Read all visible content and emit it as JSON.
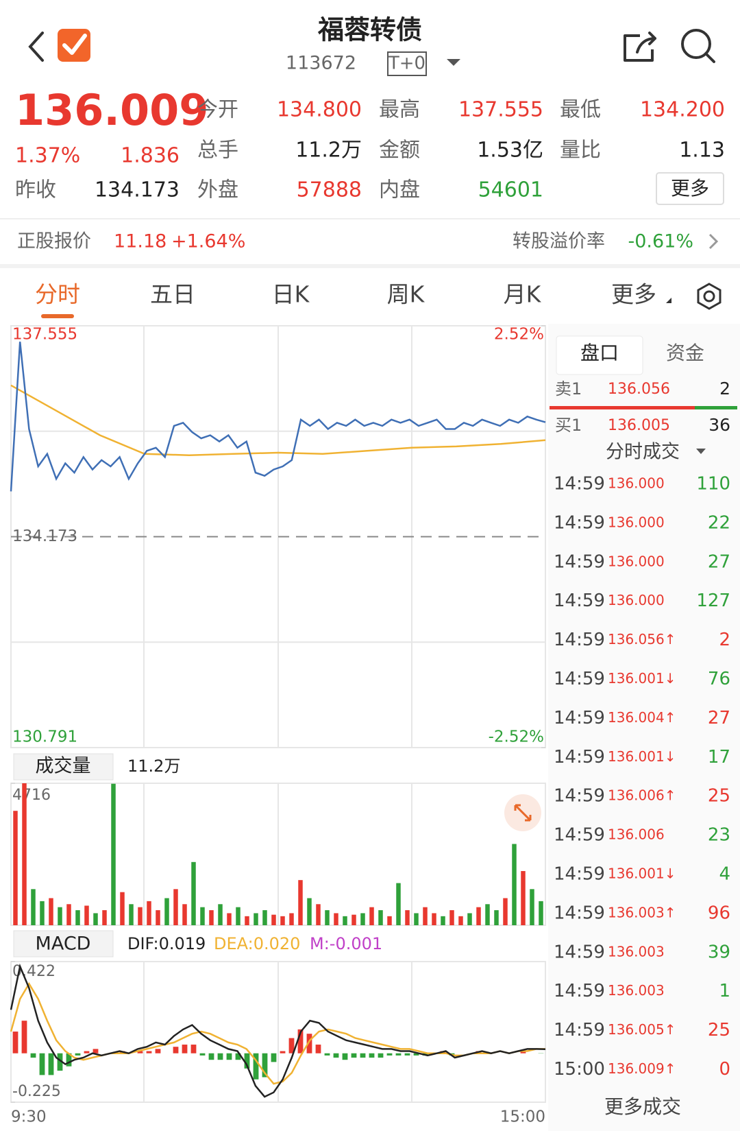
{
  "header": {
    "title": "福蓉转债",
    "code": "113672",
    "tag": "T+0"
  },
  "quote": {
    "price": "136.009",
    "change_pct": "1.37%",
    "change": "1.836",
    "prev_close_label": "昨收",
    "prev_close": "134.173",
    "fields": [
      [
        {
          "label": "今开",
          "value": "134.800",
          "color": "#e8382f"
        },
        {
          "label": "最高",
          "value": "137.555",
          "color": "#e8382f"
        },
        {
          "label": "最低",
          "value": "134.200",
          "color": "#e8382f"
        }
      ],
      [
        {
          "label": "总手",
          "value": "11.2万",
          "color": "#222222"
        },
        {
          "label": "金额",
          "value": "1.53亿",
          "color": "#222222"
        },
        {
          "label": "量比",
          "value": "1.13",
          "color": "#222222"
        }
      ],
      [
        {
          "label": "外盘",
          "value": "57888",
          "color": "#e8382f"
        },
        {
          "label": "内盘",
          "value": "54601",
          "color": "#2fa13a"
        }
      ]
    ],
    "more": "更多"
  },
  "stock_bar": {
    "label": "正股报价",
    "price": "11.18",
    "change": "+1.64%",
    "premium_label": "转股溢价率",
    "premium": "-0.61%"
  },
  "tabs": [
    "分时",
    "五日",
    "日K",
    "周K",
    "月K",
    "更多"
  ],
  "price_chart": {
    "type": "line",
    "ylim": [
      130.791,
      137.555
    ],
    "yticks": [
      137.555,
      134.173,
      130.791
    ],
    "y2lim": [
      -2.52,
      2.52
    ],
    "y2ticks": [
      {
        "value": 2.52,
        "label": "2.52%"
      },
      {
        "value": -2.52,
        "label": "-2.52%"
      }
    ],
    "price": {
      "color": "#3f6fb5",
      "values": [
        134.9,
        137.3,
        135.9,
        135.3,
        135.5,
        135.1,
        135.35,
        135.2,
        135.45,
        135.25,
        135.4,
        135.3,
        135.45,
        135.1,
        135.35,
        135.55,
        135.6,
        135.45,
        135.95,
        136.0,
        135.85,
        135.75,
        135.8,
        135.7,
        135.8,
        135.6,
        135.7,
        135.2,
        135.15,
        135.25,
        135.3,
        135.4,
        136.05,
        135.95,
        136.05,
        135.9,
        136.0,
        135.95,
        136.05,
        135.95,
        136.0,
        135.95,
        136.05,
        136.0,
        136.05,
        135.95,
        136.0,
        136.05,
        135.9,
        135.9,
        136.0,
        135.95,
        136.05,
        136.0,
        135.95,
        136.05,
        136.0,
        136.1,
        136.05,
        136.009
      ]
    },
    "average": {
      "color": "#f0b232",
      "values": [
        136.6,
        136.2,
        135.8,
        135.5,
        135.48,
        135.5,
        135.52,
        135.5,
        135.55,
        135.6,
        135.62,
        135.66,
        135.72
      ]
    }
  },
  "volume_chart": {
    "type": "bar",
    "label": "成交量",
    "total": "11.2万",
    "ylim": [
      0,
      4716
    ],
    "yticks": [
      4716
    ],
    "up_color": "#e8382f",
    "down_color": "#2fa13a",
    "values": [
      3800,
      4716,
      1200,
      800,
      900,
      600,
      700,
      500,
      650,
      400,
      500,
      4700,
      1100,
      700,
      600,
      800,
      500,
      900,
      1200,
      700,
      2100,
      600,
      500,
      700,
      400,
      600,
      300,
      400,
      500,
      350,
      300,
      400,
      1500,
      900,
      700,
      500,
      400,
      300,
      350,
      400,
      600,
      500,
      300,
      1400,
      500,
      400,
      600,
      400,
      300,
      500,
      300,
      400,
      600,
      700,
      500,
      900,
      2700,
      1800,
      1200,
      800
    ]
  },
  "macd_chart": {
    "type": "macd",
    "label": "MACD",
    "dif_text": "DIF:0.019",
    "dea_text": "DEA:0.020",
    "m_text": "M:-0.001",
    "ylim": [
      -0.225,
      0.422
    ],
    "yticks": [
      0.422,
      -0.225
    ],
    "dif": {
      "color": "#222222",
      "values": [
        0.2,
        0.4,
        0.3,
        0.15,
        0.05,
        -0.02,
        -0.05,
        -0.03,
        -0.02,
        0.0,
        -0.01,
        0.0,
        0.01,
        0.0,
        0.02,
        0.03,
        0.05,
        0.04,
        0.08,
        0.11,
        0.13,
        0.09,
        0.06,
        0.04,
        0.02,
        0.01,
        -0.05,
        -0.15,
        -0.2,
        -0.18,
        -0.12,
        -0.02,
        0.1,
        0.15,
        0.14,
        0.1,
        0.08,
        0.06,
        0.05,
        0.04,
        0.03,
        0.02,
        0.02,
        0.01,
        0.01,
        0.0,
        -0.01,
        0.0,
        0.01,
        -0.02,
        -0.01,
        0.0,
        0.01,
        0.0,
        0.01,
        0.0,
        0.01,
        0.02,
        0.02,
        0.019
      ]
    },
    "dea": {
      "color": "#f0b232",
      "values": [
        0.1,
        0.25,
        0.32,
        0.25,
        0.15,
        0.06,
        0.01,
        -0.02,
        -0.03,
        -0.02,
        -0.01,
        0.0,
        0.0,
        0.0,
        0.01,
        0.02,
        0.03,
        0.04,
        0.05,
        0.07,
        0.09,
        0.1,
        0.09,
        0.07,
        0.05,
        0.04,
        0.02,
        -0.03,
        -0.09,
        -0.14,
        -0.13,
        -0.09,
        -0.01,
        0.06,
        0.1,
        0.11,
        0.1,
        0.09,
        0.07,
        0.06,
        0.05,
        0.04,
        0.03,
        0.02,
        0.02,
        0.01,
        0.0,
        0.0,
        0.0,
        -0.01,
        -0.01,
        0.0,
        0.0,
        0.0,
        0.01,
        0.0,
        0.01,
        0.01,
        0.02,
        0.02
      ]
    },
    "m": {
      "color": "#c040c8",
      "up_color": "#e8382f",
      "down_color": "#2fa13a",
      "values": [
        0.1,
        0.15,
        -0.02,
        -0.1,
        -0.1,
        -0.08,
        -0.06,
        -0.01,
        0.01,
        0.02,
        0.0,
        0.0,
        0.01,
        0.0,
        0.01,
        0.01,
        0.02,
        0.0,
        0.03,
        0.04,
        0.04,
        -0.01,
        -0.03,
        -0.03,
        -0.03,
        -0.03,
        -0.07,
        -0.12,
        -0.11,
        -0.04,
        0.01,
        0.07,
        0.11,
        0.09,
        0.04,
        -0.01,
        -0.02,
        -0.03,
        -0.02,
        -0.02,
        -0.02,
        -0.02,
        -0.01,
        -0.01,
        -0.01,
        -0.01,
        -0.01,
        0.0,
        0.01,
        -0.01,
        0.0,
        0.0,
        0.01,
        0.0,
        0.0,
        0.0,
        0.0,
        0.01,
        0.0,
        -0.001
      ]
    }
  },
  "time_labels": [
    "9:30",
    "15:00"
  ],
  "side_panel": {
    "tabs": [
      "盘口",
      "资金"
    ],
    "sell": {
      "label": "卖1",
      "price": "136.056",
      "volume": "2"
    },
    "buy": {
      "label": "买1",
      "price": "136.005",
      "volume": "36"
    },
    "trades_title": "分时成交",
    "trades": [
      [
        "14:59",
        "136.000",
        "110"
      ],
      [
        "14:59",
        "136.000",
        "22"
      ],
      [
        "14:59",
        "136.000",
        "27"
      ],
      [
        "14:59",
        "136.000",
        "127"
      ],
      [
        "14:59",
        "136.056↑",
        "2"
      ],
      [
        "14:59",
        "136.001↓",
        "76"
      ],
      [
        "14:59",
        "136.004↑",
        "27"
      ],
      [
        "14:59",
        "136.001↓",
        "17"
      ],
      [
        "14:59",
        "136.006↑",
        "25"
      ],
      [
        "14:59",
        "136.006",
        "23"
      ],
      [
        "14:59",
        "136.001↓",
        "4"
      ],
      [
        "14:59",
        "136.003↑",
        "96"
      ],
      [
        "14:59",
        "136.003",
        "39"
      ],
      [
        "14:59",
        "136.003",
        "1"
      ],
      [
        "14:59",
        "136.005↑",
        "25"
      ],
      [
        "15:00",
        "136.009↑",
        "0"
      ]
    ],
    "more_trades": "更多成交"
  }
}
